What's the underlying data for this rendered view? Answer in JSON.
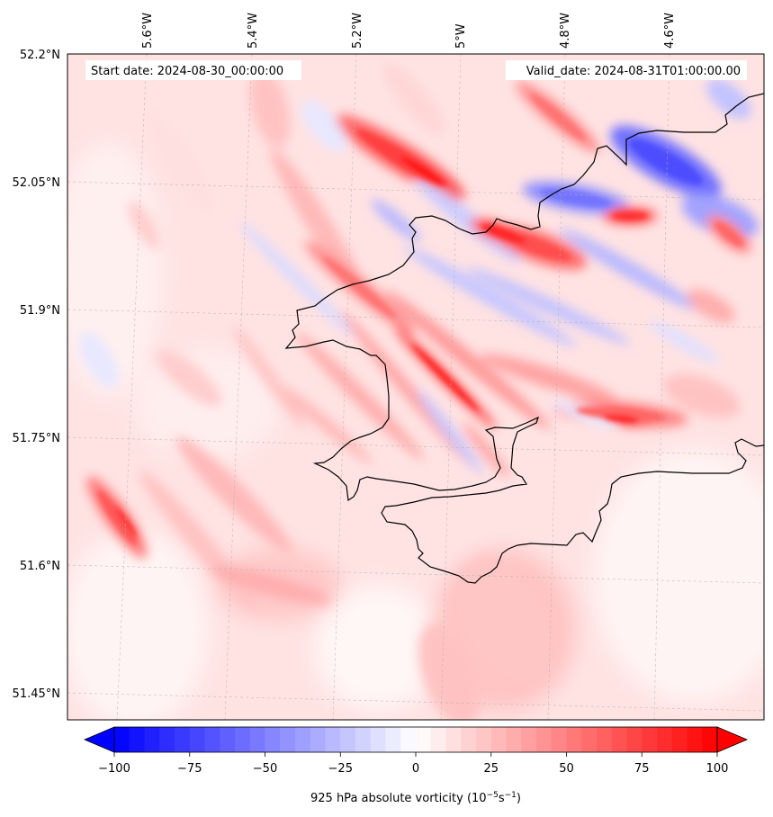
{
  "map": {
    "info": {
      "start_label": "Start date: 2024-08-30_00:00:00",
      "valid_label": "Valid_date: 2024-08-31T01:00:00.00"
    },
    "lat_ticks": [
      "52.2°N",
      "52.05°N",
      "51.9°N",
      "51.75°N",
      "51.6°N",
      "51.45°N"
    ],
    "lon_ticks": [
      "5.6°W",
      "5.4°W",
      "5.2°W",
      "5°W",
      "4.8°W",
      "4.6°W"
    ],
    "colors": {
      "negative": "#0000ff",
      "zero": "#ffffff",
      "positive": "#ff0000",
      "coastline": "#000000",
      "gridline": "#b0b0b0"
    },
    "gridlines": "dashed"
  },
  "colorbar": {
    "ticks": [
      "−100",
      "−75",
      "−50",
      "−25",
      "0",
      "25",
      "50",
      "75",
      "100"
    ],
    "range": [
      -100,
      100
    ],
    "extend": "both",
    "label_main": "925 hPa absolute vorticity (10",
    "label_exp1": "−5",
    "label_mid": "s",
    "label_exp2": "−1",
    "label_end": ")"
  }
}
